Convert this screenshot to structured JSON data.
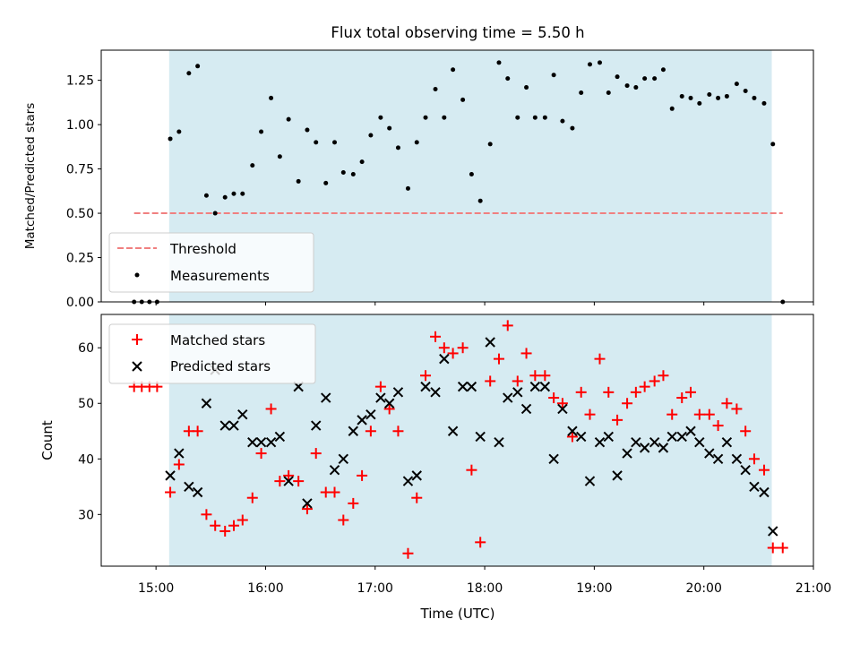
{
  "chart_data": [
    {
      "type": "scatter",
      "title": "Flux total observing time = 5.50 h",
      "ylabel": "Matched/Predicted stars",
      "xlabel": "",
      "xlim": [
        14.5,
        21.0
      ],
      "ylim": [
        0.0,
        1.42
      ],
      "yticks": [
        0.0,
        0.25,
        0.5,
        0.75,
        1.0,
        1.25
      ],
      "ytick_labels": [
        "0.00",
        "0.25",
        "0.50",
        "0.75",
        "1.00",
        "1.25"
      ],
      "observing_window": [
        15.12,
        20.62
      ],
      "colors": {
        "window": "#add8e6",
        "threshold": "#f08080",
        "measurement": "#000000"
      },
      "threshold": {
        "name": "Threshold",
        "value": 0.5,
        "x_range": [
          14.8,
          20.72
        ]
      },
      "legend": {
        "placement": "lower-left",
        "entries": [
          "Threshold",
          "Measurements"
        ]
      },
      "series": [
        {
          "name": "Measurements",
          "x": [
            14.8,
            14.87,
            14.94,
            15.01,
            15.13,
            15.21,
            15.3,
            15.38,
            15.46,
            15.54,
            15.63,
            15.71,
            15.79,
            15.88,
            15.96,
            16.05,
            16.13,
            16.21,
            16.3,
            16.38,
            16.46,
            16.55,
            16.63,
            16.71,
            16.8,
            16.88,
            16.96,
            17.05,
            17.13,
            17.21,
            17.3,
            17.38,
            17.46,
            17.55,
            17.63,
            17.71,
            17.8,
            17.88,
            17.96,
            18.05,
            18.13,
            18.21,
            18.3,
            18.38,
            18.46,
            18.55,
            18.63,
            18.71,
            18.8,
            18.88,
            18.96,
            19.05,
            19.13,
            19.21,
            19.3,
            19.38,
            19.46,
            19.55,
            19.63,
            19.71,
            19.8,
            19.88,
            19.96,
            20.05,
            20.13,
            20.21,
            20.3,
            20.38,
            20.46,
            20.55,
            20.63,
            20.72
          ],
          "y": [
            0.0,
            0.0,
            0.0,
            0.0,
            0.92,
            0.96,
            1.29,
            1.33,
            0.6,
            0.5,
            0.59,
            0.61,
            0.61,
            0.77,
            0.96,
            1.15,
            0.82,
            1.03,
            0.68,
            0.97,
            0.9,
            0.67,
            0.9,
            0.73,
            0.72,
            0.79,
            0.94,
            1.04,
            0.98,
            0.87,
            0.64,
            0.9,
            1.04,
            1.2,
            1.04,
            1.31,
            1.14,
            0.72,
            0.57,
            0.89,
            1.35,
            1.26,
            1.04,
            1.21,
            1.04,
            1.04,
            1.28,
            1.02,
            0.98,
            1.18,
            1.34,
            1.35,
            1.18,
            1.27,
            1.22,
            1.21,
            1.26,
            1.26,
            1.31,
            1.09,
            1.16,
            1.15,
            1.12,
            1.17,
            1.15,
            1.16,
            1.23,
            1.19,
            1.15,
            1.12,
            0.89,
            0.0
          ]
        }
      ]
    },
    {
      "type": "scatter",
      "title": "",
      "xlabel": "Time (UTC)",
      "ylabel": "Count",
      "xlim": [
        14.5,
        21.0
      ],
      "ylim": [
        20.7,
        66.0
      ],
      "xticks": [
        15,
        16,
        17,
        18,
        19,
        20,
        21
      ],
      "xtick_labels": [
        "15:00",
        "16:00",
        "17:00",
        "18:00",
        "19:00",
        "20:00",
        "21:00"
      ],
      "yticks": [
        30,
        40,
        50,
        60
      ],
      "ytick_labels": [
        "30",
        "40",
        "50",
        "60"
      ],
      "observing_window": [
        15.12,
        20.62
      ],
      "colors": {
        "window": "#add8e6",
        "matched": "#ff0000",
        "predicted": "#000000"
      },
      "legend": {
        "placement": "top-left",
        "entries": [
          "Matched stars",
          "Predicted stars"
        ]
      },
      "series": [
        {
          "name": "Matched stars",
          "marker": "+",
          "x": [
            14.8,
            14.87,
            14.94,
            15.01,
            15.13,
            15.21,
            15.3,
            15.38,
            15.46,
            15.54,
            15.63,
            15.71,
            15.79,
            15.88,
            15.96,
            16.05,
            16.13,
            16.21,
            16.3,
            16.38,
            16.46,
            16.55,
            16.63,
            16.71,
            16.8,
            16.88,
            16.96,
            17.05,
            17.13,
            17.21,
            17.3,
            17.38,
            17.46,
            17.55,
            17.63,
            17.71,
            17.8,
            17.88,
            17.96,
            18.05,
            18.13,
            18.21,
            18.3,
            18.38,
            18.46,
            18.55,
            18.63,
            18.71,
            18.8,
            18.88,
            18.96,
            19.05,
            19.13,
            19.21,
            19.3,
            19.38,
            19.46,
            19.55,
            19.63,
            19.71,
            19.8,
            19.88,
            19.96,
            20.05,
            20.13,
            20.21,
            20.3,
            20.38,
            20.46,
            20.55,
            20.63,
            20.72
          ],
          "y": [
            53,
            53,
            53,
            53,
            34,
            39,
            45,
            45,
            30,
            28,
            27,
            28,
            29,
            33,
            41,
            49,
            36,
            37,
            36,
            31,
            41,
            34,
            34,
            29,
            32,
            37,
            45,
            53,
            49,
            45,
            23,
            33,
            55,
            62,
            60,
            59,
            60,
            38,
            25,
            54,
            58,
            64,
            54,
            59,
            55,
            55,
            51,
            50,
            44,
            52,
            48,
            58,
            52,
            47,
            50,
            52,
            53,
            54,
            55,
            48,
            51,
            52,
            48,
            48,
            46,
            50,
            49,
            45,
            40,
            38,
            24,
            24
          ]
        },
        {
          "name": "Predicted stars",
          "marker": "x",
          "x": [
            15.13,
            15.21,
            15.3,
            15.38,
            15.46,
            15.54,
            15.63,
            15.71,
            15.79,
            15.88,
            15.96,
            16.05,
            16.13,
            16.21,
            16.3,
            16.38,
            16.46,
            16.55,
            16.63,
            16.71,
            16.8,
            16.88,
            16.96,
            17.05,
            17.13,
            17.21,
            17.3,
            17.38,
            17.46,
            17.55,
            17.63,
            17.71,
            17.8,
            17.88,
            17.96,
            18.05,
            18.13,
            18.21,
            18.3,
            18.38,
            18.46,
            18.55,
            18.63,
            18.71,
            18.8,
            18.88,
            18.96,
            19.05,
            19.13,
            19.21,
            19.3,
            19.38,
            19.46,
            19.55,
            19.63,
            19.71,
            19.8,
            19.88,
            19.96,
            20.05,
            20.13,
            20.21,
            20.3,
            20.38,
            20.46,
            20.55,
            20.63
          ],
          "y": [
            37,
            41,
            35,
            34,
            50,
            56,
            46,
            46,
            48,
            43,
            43,
            43,
            44,
            36,
            53,
            32,
            46,
            51,
            38,
            40,
            45,
            47,
            48,
            51,
            50,
            52,
            36,
            37,
            53,
            52,
            58,
            45,
            53,
            53,
            44,
            61,
            43,
            51,
            52,
            49,
            53,
            53,
            40,
            49,
            45,
            44,
            36,
            43,
            44,
            37,
            41,
            43,
            42,
            43,
            42,
            44,
            44,
            45,
            43,
            41,
            40,
            43,
            40,
            38,
            35,
            34,
            27
          ]
        }
      ]
    }
  ]
}
